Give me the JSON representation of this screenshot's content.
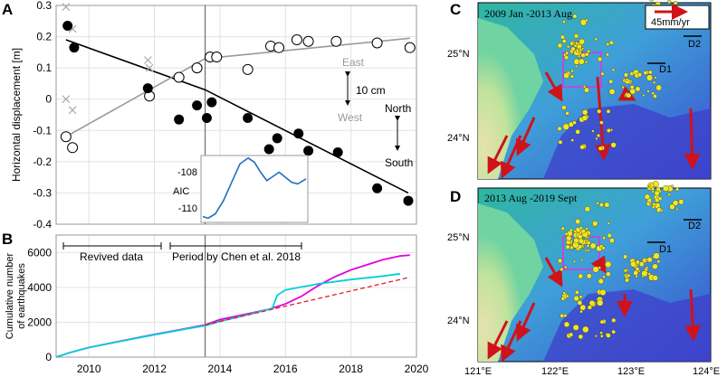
{
  "panel_labels": {
    "a": "A",
    "b": "B",
    "c": "C",
    "d": "D"
  },
  "chart_data": [
    {
      "type": "scatter",
      "panel": "A",
      "ylabel": "Horizontal displacement [m]",
      "xlim": [
        2009,
        2020
      ],
      "ylim": [
        -0.4,
        0.3
      ],
      "yticks": [
        0.3,
        0.2,
        0.1,
        0,
        -0.1,
        -0.2,
        -0.3,
        -0.4
      ],
      "ytick_labels": [
        "0.3",
        "0.2",
        "0.1",
        "0",
        "-0.1",
        "-0.2",
        "-0.3",
        "-0.4"
      ],
      "vline_year": 2013.55,
      "series": [
        {
          "name": "North (filled)",
          "color": "#000000",
          "x": [
            2009.35,
            2009.55,
            2011.8,
            2012.75,
            2013.3,
            2013.6,
            2013.75,
            2014.85,
            2015.5,
            2015.75,
            2016.4,
            2016.7,
            2017.6,
            2018.8,
            2019.75
          ],
          "y": [
            0.235,
            0.165,
            0.035,
            -0.065,
            -0.02,
            -0.06,
            -0.01,
            -0.06,
            -0.16,
            -0.125,
            -0.11,
            -0.165,
            -0.17,
            -0.285,
            -0.325
          ]
        },
        {
          "name": "East (open)",
          "color": "#000000",
          "x": [
            2009.3,
            2009.5,
            2011.85,
            2012.75,
            2013.3,
            2013.7,
            2013.9,
            2014.85,
            2015.55,
            2015.8,
            2016.35,
            2016.7,
            2017.55,
            2018.8,
            2019.8
          ],
          "y": [
            -0.12,
            -0.155,
            0.01,
            0.07,
            0.1,
            0.135,
            0.135,
            0.095,
            0.17,
            0.165,
            0.19,
            0.185,
            0.185,
            0.18,
            0.165
          ]
        },
        {
          "name": "Removed (x)",
          "color": "#aaaaaa",
          "x": [
            2009.3,
            2009.5,
            2011.8,
            2011.85,
            2009.3,
            2009.5
          ],
          "y": [
            0.295,
            0.225,
            0.125,
            0.1,
            0.0,
            -0.035
          ]
        }
      ],
      "fit_lines": [
        {
          "name": "North trend",
          "color": "#000000",
          "points": [
            [
              2009.3,
              0.19
            ],
            [
              2013.55,
              0.03
            ],
            [
              2019.75,
              -0.3
            ]
          ]
        },
        {
          "name": "East trend",
          "color": "#999999",
          "points": [
            [
              2009.3,
              -0.12
            ],
            [
              2013.55,
              0.13
            ],
            [
              2019.8,
              0.195
            ]
          ]
        }
      ],
      "annotations": {
        "east": "East",
        "west": "West",
        "scale": "10 cm",
        "north": "North",
        "south": "South"
      },
      "inset": {
        "ylabel": "AIC",
        "ytick_labels": [
          "-108",
          "-110"
        ],
        "ylim": [
          -110.8,
          -106.8
        ],
        "x": [
          0,
          0.05,
          0.12,
          0.2,
          0.28,
          0.36,
          0.44,
          0.5,
          0.56,
          0.62,
          0.68,
          0.74,
          0.8,
          0.86,
          0.92,
          1.0
        ],
        "y": [
          -110.45,
          -110.55,
          -110.3,
          -109.5,
          -108.4,
          -107.3,
          -106.95,
          -107.2,
          -107.8,
          -108.3,
          -108.05,
          -107.8,
          -108.1,
          -108.4,
          -108.5,
          -108.2
        ]
      }
    },
    {
      "type": "line",
      "panel": "B",
      "ylabel": "Cumulative number of earthquakes",
      "xlim": [
        2009,
        2020
      ],
      "ylim": [
        0,
        7000
      ],
      "xticks": [
        2010,
        2012,
        2014,
        2016,
        2018,
        2020
      ],
      "xtick_labels": [
        "2010",
        "2012",
        "2014",
        "2016",
        "2018",
        "2020"
      ],
      "yticks": [
        0,
        2000,
        4000,
        6000
      ],
      "ytick_labels": [
        "0",
        "2000",
        "4000",
        "6000"
      ],
      "vline_year": 2013.55,
      "series": [
        {
          "name": "Magenta",
          "color": "#e000e0",
          "x": [
            2009.0,
            2009.4,
            2010,
            2011,
            2012,
            2013,
            2013.55,
            2014,
            2015,
            2015.5,
            2016,
            2016.5,
            2017,
            2017.5,
            2018,
            2018.5,
            2019,
            2019.5,
            2019.8
          ],
          "y": [
            0,
            250,
            550,
            930,
            1300,
            1650,
            1850,
            2150,
            2550,
            2750,
            3050,
            3500,
            4100,
            4600,
            5000,
            5300,
            5600,
            5800,
            5850
          ]
        },
        {
          "name": "Cyan",
          "color": "#00d0d8",
          "x": [
            2009.0,
            2009.4,
            2010,
            2011,
            2012,
            2013,
            2013.55,
            2014,
            2015,
            2015.6,
            2015.75,
            2016,
            2017,
            2018,
            2019,
            2019.5
          ],
          "y": [
            0,
            250,
            550,
            920,
            1280,
            1630,
            1800,
            2050,
            2500,
            2800,
            3550,
            3850,
            4200,
            4450,
            4650,
            4780
          ]
        },
        {
          "name": "Trend (dashed)",
          "color": "#e02020",
          "dashed": true,
          "x": [
            2013.55,
            2019.8
          ],
          "y": [
            1850,
            4580
          ]
        }
      ],
      "annotations": {
        "revived": "Revived data",
        "period": "Period by Chen et al. 2018"
      }
    }
  ],
  "maps": {
    "c_title": "2009 Jan -2013 Aug",
    "d_title": "2013 Aug -2019 Sept",
    "scale_label": "45mm/yr",
    "lat_labels": [
      "25°N",
      "24°N"
    ],
    "lon_labels": [
      "121°E",
      "122°E",
      "123°E",
      "124°E"
    ],
    "d1": "D1",
    "d2": "D2"
  }
}
